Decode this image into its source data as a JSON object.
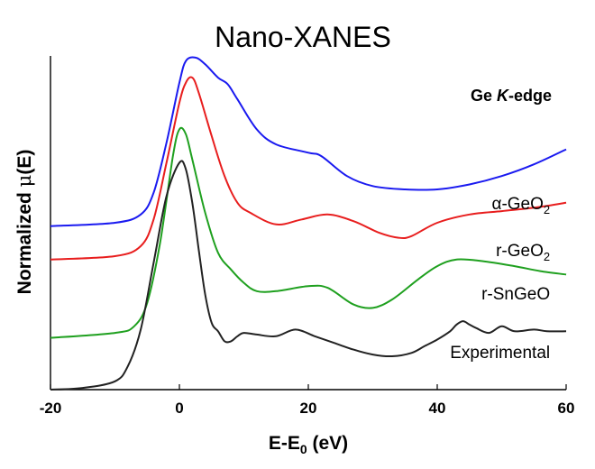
{
  "chart_data": {
    "type": "line",
    "title": "Nano-XANES",
    "xlabel": {
      "main": "E-E",
      "sub": "0",
      "unit": " (eV)"
    },
    "ylabel": {
      "main": "Normalized ",
      "mu": "μ",
      "rest": "(E)"
    },
    "edge_label": {
      "element": "Ge ",
      "shell": "K",
      "suffix": "-edge"
    },
    "xlim": [
      -20,
      60
    ],
    "xticks": [
      -20,
      0,
      20,
      40,
      60
    ],
    "xtick_labels": [
      "-20",
      "0",
      "20",
      "40",
      "60"
    ],
    "ylim": [
      0,
      10
    ],
    "yticks_shown": false,
    "series": [
      {
        "name": "α-GeO2",
        "label": {
          "base": "α-GeO",
          "sub": "2"
        },
        "color": "#1a1af0",
        "x": [
          -20,
          -10,
          -6,
          -4,
          -2,
          0,
          1,
          2.5,
          4,
          6,
          7.5,
          9,
          12,
          15,
          20,
          22,
          26,
          30,
          35,
          40,
          45,
          50,
          55,
          60
        ],
        "y": [
          4.9,
          5.0,
          5.25,
          5.9,
          7.4,
          9.2,
          9.85,
          9.95,
          9.75,
          9.35,
          9.15,
          8.7,
          7.8,
          7.35,
          7.1,
          7.0,
          6.4,
          6.1,
          6.0,
          6.0,
          6.15,
          6.4,
          6.75,
          7.2
        ]
      },
      {
        "name": "r-GeO2",
        "label": {
          "base": "r-GeO",
          "sub": "2"
        },
        "color": "#e81e1e",
        "x": [
          -20,
          -10,
          -6,
          -4,
          -2,
          0,
          1,
          2,
          3,
          5,
          7,
          9,
          11,
          15,
          19,
          23,
          27,
          31,
          34,
          36,
          40,
          45,
          50,
          55,
          60
        ],
        "y": [
          3.9,
          4.0,
          4.3,
          5.1,
          6.8,
          8.6,
          9.2,
          9.35,
          8.9,
          7.6,
          6.4,
          5.6,
          5.3,
          4.95,
          5.1,
          5.25,
          5.05,
          4.7,
          4.55,
          4.6,
          5.0,
          5.25,
          5.35,
          5.45,
          5.6
        ]
      },
      {
        "name": "r-SnGeO",
        "label": {
          "base": "r-SnGeO",
          "sub": ""
        },
        "color": "#1fa01f",
        "x": [
          -20,
          -10,
          -7,
          -5,
          -3,
          -1,
          0,
          1,
          2,
          4,
          6,
          8,
          10,
          12,
          15,
          20,
          23,
          27,
          30,
          33,
          37,
          40,
          43,
          47,
          52,
          56,
          60
        ],
        "y": [
          1.55,
          1.7,
          1.9,
          2.6,
          4.4,
          7.0,
          7.8,
          7.65,
          6.9,
          5.3,
          4.1,
          3.6,
          3.2,
          2.95,
          2.95,
          3.1,
          3.05,
          2.55,
          2.45,
          2.7,
          3.3,
          3.7,
          3.9,
          3.85,
          3.7,
          3.55,
          3.45
        ]
      },
      {
        "name": "Experimental",
        "label": {
          "base": "Experimental",
          "sub": ""
        },
        "color": "#222222",
        "x": [
          -20,
          -15,
          -10,
          -8,
          -6,
          -4,
          -2,
          0,
          1,
          2,
          3,
          4,
          5,
          6,
          7,
          8,
          9,
          10,
          12,
          15,
          18,
          21,
          24,
          27,
          30,
          33,
          36,
          38,
          40,
          42,
          43,
          44,
          45,
          46,
          48,
          50,
          52,
          55,
          57,
          60
        ],
        "y": [
          0.0,
          0.05,
          0.25,
          0.7,
          1.8,
          3.8,
          5.8,
          6.8,
          6.6,
          5.6,
          4.2,
          2.85,
          2.0,
          1.75,
          1.45,
          1.45,
          1.6,
          1.7,
          1.65,
          1.6,
          1.8,
          1.6,
          1.4,
          1.2,
          1.05,
          1.0,
          1.1,
          1.3,
          1.5,
          1.75,
          1.95,
          2.05,
          1.95,
          1.85,
          1.7,
          1.9,
          1.75,
          1.8,
          1.75,
          1.75
        ]
      }
    ]
  }
}
